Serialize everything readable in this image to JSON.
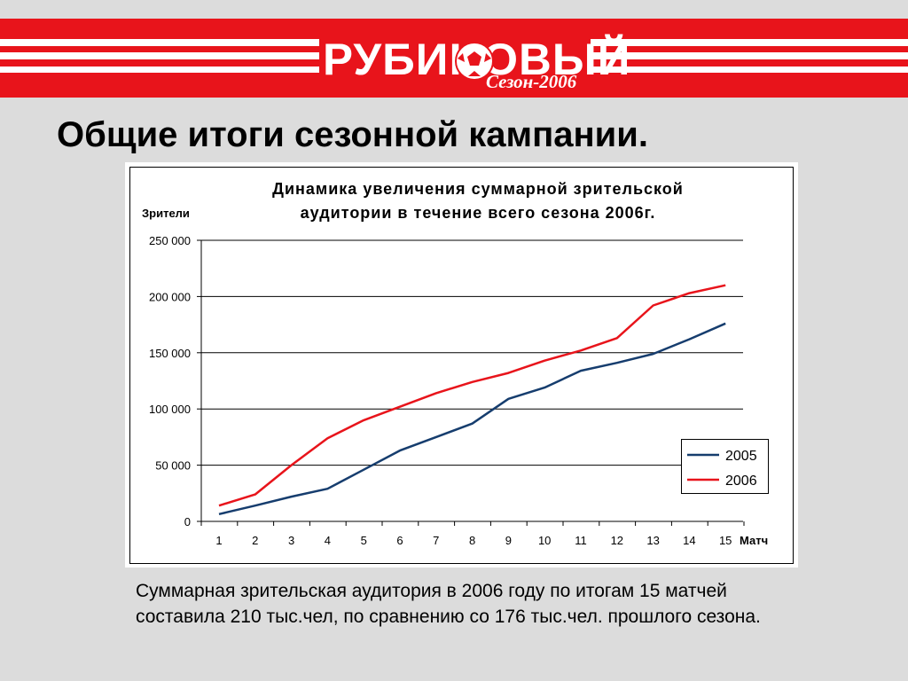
{
  "banner": {
    "logo_text": "РУБИНОВЫЙ",
    "logo_subtitle": "Сезон-2006",
    "colors": {
      "red": "#e8141b",
      "white": "#ffffff"
    }
  },
  "page_title": "Общие итоги сезонной кампании.",
  "caption": "Суммарная зрительская аудитория в 2006 году по итогам 15 матчей составила 210 тыс.чел, по сравнению со 176 тыс.чел. прошлого сезона.",
  "chart_data": {
    "type": "line",
    "title_lines": [
      "Динамика увеличения суммарной зрительской",
      "аудитории в течение всего сезона 2006г."
    ],
    "xlabel": "Матч",
    "ylabel": "Зрители",
    "x": [
      1,
      2,
      3,
      4,
      5,
      6,
      7,
      8,
      9,
      10,
      11,
      12,
      13,
      14,
      15
    ],
    "ylim": [
      0,
      250000
    ],
    "yticks": [
      0,
      50000,
      100000,
      150000,
      200000,
      250000
    ],
    "ytick_labels": [
      "0",
      "50 000",
      "100 000",
      "150 000",
      "200 000",
      "250 000"
    ],
    "grid": true,
    "legend_position": "bottom-right",
    "series": [
      {
        "name": "2005",
        "color": "#163d6e",
        "values": [
          6500,
          14000,
          22000,
          29000,
          46000,
          63000,
          75000,
          87000,
          109000,
          119000,
          134000,
          141000,
          149000,
          162000,
          176000
        ]
      },
      {
        "name": "2006",
        "color": "#e8141b",
        "values": [
          14000,
          24000,
          50000,
          74000,
          90000,
          102000,
          114000,
          124000,
          132000,
          143000,
          152000,
          163000,
          192000,
          203000,
          210000
        ]
      }
    ]
  }
}
